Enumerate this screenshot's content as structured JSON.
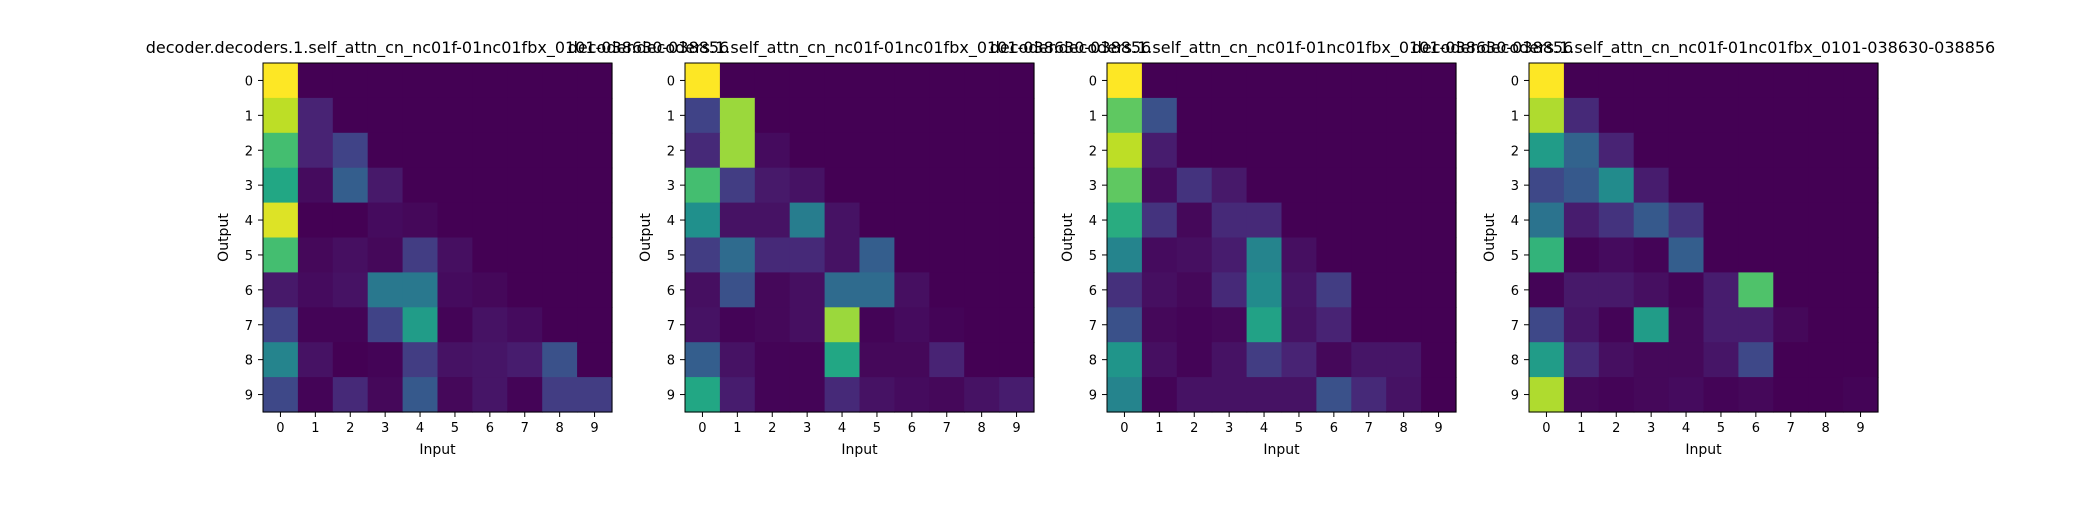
{
  "chart_data": [
    {
      "type": "heatmap",
      "title": "decoder.decoders.1.self_attn_cn_nc01f-01nc01fbx_0101-038630-038856",
      "xlabel": "Input",
      "ylabel": "Output",
      "x_ticks": [
        "0",
        "1",
        "2",
        "3",
        "4",
        "5",
        "6",
        "7",
        "8",
        "9"
      ],
      "y_ticks": [
        "0",
        "1",
        "2",
        "3",
        "4",
        "5",
        "6",
        "7",
        "8",
        "9"
      ],
      "colormap": "viridis",
      "vmin": 0,
      "vmax": 1,
      "values": [
        [
          1.0,
          0.0,
          0.0,
          0.0,
          0.0,
          0.0,
          0.0,
          0.0,
          0.0,
          0.0
        ],
        [
          0.9,
          0.1,
          0.0,
          0.0,
          0.0,
          0.0,
          0.0,
          0.0,
          0.0,
          0.0
        ],
        [
          0.7,
          0.1,
          0.2,
          0.0,
          0.0,
          0.0,
          0.0,
          0.0,
          0.0,
          0.0
        ],
        [
          0.6,
          0.03,
          0.3,
          0.07,
          0.0,
          0.0,
          0.0,
          0.0,
          0.0,
          0.0
        ],
        [
          0.95,
          0.0,
          0.0,
          0.03,
          0.02,
          0.0,
          0.0,
          0.0,
          0.0,
          0.0
        ],
        [
          0.7,
          0.02,
          0.04,
          0.02,
          0.18,
          0.04,
          0.0,
          0.0,
          0.0,
          0.0
        ],
        [
          0.07,
          0.03,
          0.05,
          0.4,
          0.4,
          0.03,
          0.02,
          0.0,
          0.0,
          0.0
        ],
        [
          0.2,
          0.01,
          0.01,
          0.2,
          0.55,
          0.01,
          0.05,
          0.03,
          0.0,
          0.0
        ],
        [
          0.45,
          0.05,
          0.0,
          0.01,
          0.18,
          0.05,
          0.06,
          0.08,
          0.25,
          0.0
        ],
        [
          0.22,
          0.01,
          0.12,
          0.02,
          0.28,
          0.02,
          0.06,
          0.01,
          0.18,
          0.18
        ]
      ]
    },
    {
      "type": "heatmap",
      "title": "decoder.decoders.1.self_attn_cn_nc01f-01nc01fbx_0101-038630-038856",
      "xlabel": "Input",
      "ylabel": "Output",
      "x_ticks": [
        "0",
        "1",
        "2",
        "3",
        "4",
        "5",
        "6",
        "7",
        "8",
        "9"
      ],
      "y_ticks": [
        "0",
        "1",
        "2",
        "3",
        "4",
        "5",
        "6",
        "7",
        "8",
        "9"
      ],
      "colormap": "viridis",
      "vmin": 0,
      "vmax": 1,
      "values": [
        [
          1.0,
          0.0,
          0.0,
          0.0,
          0.0,
          0.0,
          0.0,
          0.0,
          0.0,
          0.0
        ],
        [
          0.2,
          0.85,
          0.0,
          0.0,
          0.0,
          0.0,
          0.0,
          0.0,
          0.0,
          0.0
        ],
        [
          0.12,
          0.85,
          0.03,
          0.0,
          0.0,
          0.0,
          0.0,
          0.0,
          0.0,
          0.0
        ],
        [
          0.7,
          0.18,
          0.07,
          0.05,
          0.0,
          0.0,
          0.0,
          0.0,
          0.0,
          0.0
        ],
        [
          0.5,
          0.05,
          0.05,
          0.42,
          0.05,
          0.0,
          0.0,
          0.0,
          0.0,
          0.0
        ],
        [
          0.18,
          0.35,
          0.12,
          0.12,
          0.05,
          0.3,
          0.0,
          0.0,
          0.0,
          0.0
        ],
        [
          0.04,
          0.25,
          0.02,
          0.04,
          0.35,
          0.35,
          0.04,
          0.0,
          0.0,
          0.0
        ],
        [
          0.05,
          0.01,
          0.02,
          0.04,
          0.85,
          0.01,
          0.03,
          0.01,
          0.0,
          0.0
        ],
        [
          0.3,
          0.05,
          0.01,
          0.01,
          0.6,
          0.02,
          0.02,
          0.1,
          0.0,
          0.0
        ],
        [
          0.6,
          0.08,
          0.01,
          0.01,
          0.12,
          0.05,
          0.03,
          0.02,
          0.05,
          0.08
        ]
      ]
    },
    {
      "type": "heatmap",
      "title": "decoder.decoders.1.self_attn_cn_nc01f-01nc01fbx_0101-038630-038856",
      "xlabel": "Input",
      "ylabel": "Output",
      "x_ticks": [
        "0",
        "1",
        "2",
        "3",
        "4",
        "5",
        "6",
        "7",
        "8",
        "9"
      ],
      "y_ticks": [
        "0",
        "1",
        "2",
        "3",
        "4",
        "5",
        "6",
        "7",
        "8",
        "9"
      ],
      "colormap": "viridis",
      "vmin": 0,
      "vmax": 1,
      "values": [
        [
          1.0,
          0.0,
          0.0,
          0.0,
          0.0,
          0.0,
          0.0,
          0.0,
          0.0,
          0.0
        ],
        [
          0.75,
          0.25,
          0.0,
          0.0,
          0.0,
          0.0,
          0.0,
          0.0,
          0.0,
          0.0
        ],
        [
          0.9,
          0.08,
          0.0,
          0.0,
          0.0,
          0.0,
          0.0,
          0.0,
          0.0,
          0.0
        ],
        [
          0.75,
          0.03,
          0.15,
          0.07,
          0.0,
          0.0,
          0.0,
          0.0,
          0.0,
          0.0
        ],
        [
          0.62,
          0.15,
          0.02,
          0.12,
          0.12,
          0.0,
          0.0,
          0.0,
          0.0,
          0.0
        ],
        [
          0.45,
          0.03,
          0.04,
          0.08,
          0.45,
          0.04,
          0.0,
          0.0,
          0.0,
          0.0
        ],
        [
          0.14,
          0.04,
          0.02,
          0.12,
          0.48,
          0.06,
          0.18,
          0.0,
          0.0,
          0.0
        ],
        [
          0.25,
          0.02,
          0.01,
          0.02,
          0.58,
          0.05,
          0.1,
          0.0,
          0.0,
          0.0
        ],
        [
          0.52,
          0.04,
          0.01,
          0.05,
          0.18,
          0.1,
          0.02,
          0.06,
          0.06,
          0.0
        ],
        [
          0.45,
          0.01,
          0.05,
          0.05,
          0.05,
          0.05,
          0.25,
          0.12,
          0.05,
          0.0
        ]
      ]
    },
    {
      "type": "heatmap",
      "title": "decoder.decoders.1.self_attn_cn_nc01f-01nc01fbx_0101-038630-038856",
      "xlabel": "Input",
      "ylabel": "Output",
      "x_ticks": [
        "0",
        "1",
        "2",
        "3",
        "4",
        "5",
        "6",
        "7",
        "8",
        "9"
      ],
      "y_ticks": [
        "0",
        "1",
        "2",
        "3",
        "4",
        "5",
        "6",
        "7",
        "8",
        "9"
      ],
      "colormap": "viridis",
      "vmin": 0,
      "vmax": 1,
      "values": [
        [
          1.0,
          0.0,
          0.0,
          0.0,
          0.0,
          0.0,
          0.0,
          0.0,
          0.0,
          0.0
        ],
        [
          0.88,
          0.12,
          0.0,
          0.0,
          0.0,
          0.0,
          0.0,
          0.0,
          0.0,
          0.0
        ],
        [
          0.55,
          0.32,
          0.1,
          0.0,
          0.0,
          0.0,
          0.0,
          0.0,
          0.0,
          0.0
        ],
        [
          0.22,
          0.28,
          0.48,
          0.08,
          0.0,
          0.0,
          0.0,
          0.0,
          0.0,
          0.0
        ],
        [
          0.38,
          0.08,
          0.15,
          0.28,
          0.15,
          0.0,
          0.0,
          0.0,
          0.0,
          0.0
        ],
        [
          0.65,
          0.01,
          0.03,
          0.01,
          0.3,
          0.0,
          0.0,
          0.0,
          0.0,
          0.0
        ],
        [
          0.01,
          0.07,
          0.07,
          0.04,
          0.01,
          0.08,
          0.72,
          0.0,
          0.0,
          0.0
        ],
        [
          0.22,
          0.06,
          0.01,
          0.55,
          0.02,
          0.08,
          0.08,
          0.02,
          0.0,
          0.0
        ],
        [
          0.55,
          0.12,
          0.04,
          0.02,
          0.02,
          0.06,
          0.22,
          0.0,
          0.0,
          0.0
        ],
        [
          0.88,
          0.02,
          0.01,
          0.02,
          0.03,
          0.01,
          0.02,
          0.0,
          0.0,
          0.01
        ]
      ]
    }
  ]
}
